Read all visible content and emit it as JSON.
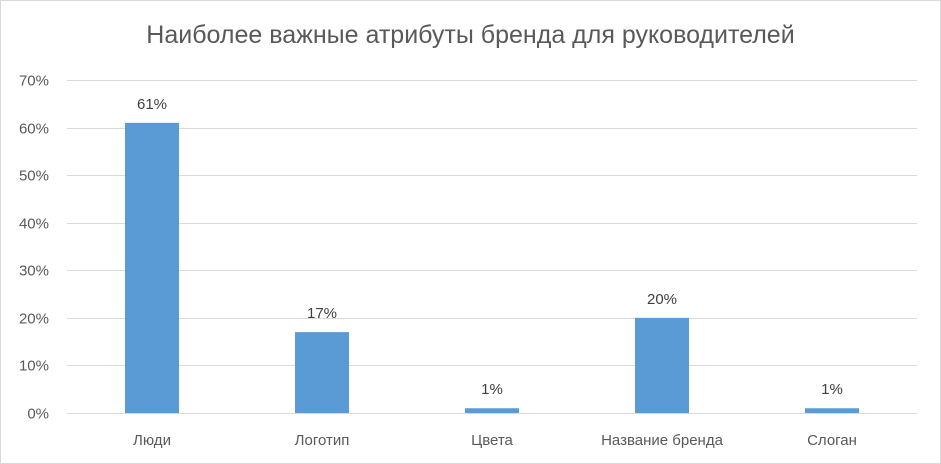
{
  "chart_data": {
    "type": "bar",
    "title": "Наиболее важные атрибуты бренда для руководителей",
    "categories": [
      "Люди",
      "Логотип",
      "Цвета",
      "Название бренда",
      "Слоган"
    ],
    "values": [
      61,
      17,
      1,
      20,
      1
    ],
    "data_labels": [
      "61%",
      "17%",
      "1%",
      "20%",
      "1%"
    ],
    "ylim": [
      0,
      70
    ],
    "y_ticks": [
      0,
      10,
      20,
      30,
      40,
      50,
      60,
      70
    ],
    "y_tick_labels": [
      "0%",
      "10%",
      "20%",
      "30%",
      "40%",
      "50%",
      "60%",
      "70%"
    ],
    "xlabel": "",
    "ylabel": "",
    "grid": true,
    "legend": "none",
    "bar_color": "#5b9bd5",
    "grid_color": "#d9d9d9"
  }
}
